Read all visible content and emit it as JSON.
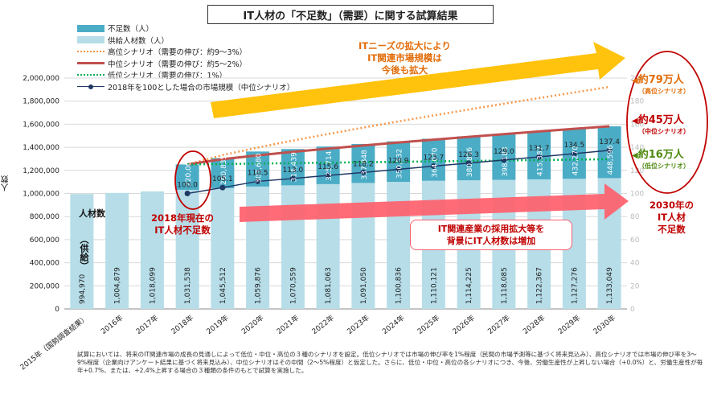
{
  "title": "IT人材の「不足数」（需要）に関する試算結果",
  "ylabel": "人数",
  "legend": [
    {
      "key": "shortage",
      "label": "不足数（人）",
      "kind": "bar",
      "color": "#4bacc6"
    },
    {
      "key": "supply",
      "label": "供給人材数（人）",
      "kind": "bar",
      "color": "#b6dde8"
    },
    {
      "key": "high",
      "label": "高位シナリオ（需要の伸び：約9～3%）",
      "kind": "dotted",
      "color": "#f79646"
    },
    {
      "key": "mid",
      "label": "中位シナリオ（需要の伸び：約5～2%）",
      "kind": "solid",
      "color": "#c0504d"
    },
    {
      "key": "low",
      "label": "低位シナリオ（需要の伸び：1%）",
      "kind": "dotted",
      "color": "#00b050"
    },
    {
      "key": "index",
      "label": "2018年を100とした場合の市場規模（中位シナリオ）",
      "kind": "marker",
      "color": "#1f3864"
    }
  ],
  "colors": {
    "shortage": "#4bacc6",
    "supply": "#b6dde8",
    "high": "#f79646",
    "mid": "#c0504d",
    "low": "#00b050",
    "index": "#1f3864",
    "arrow_orange": "#ffc000",
    "arrow_pink": "#ff5f6d"
  },
  "chart_data": {
    "type": "bar",
    "categories": [
      "2015年（国勢調査結果）",
      "2016年",
      "2017年",
      "2018年",
      "2019年",
      "2020年",
      "2021年",
      "2022年",
      "2023年",
      "2024年",
      "2025年",
      "2026年",
      "2027年",
      "2028年",
      "2029年",
      "2030年"
    ],
    "ylim": [
      0,
      2000000
    ],
    "yticks": [
      "0",
      "200,000",
      "400,000",
      "600,000",
      "800,000",
      "1,000,000",
      "1,200,000",
      "1,400,000",
      "1,600,000",
      "1,800,000",
      "2,000,000"
    ],
    "secondary_yticks": [
      "0",
      "20",
      "40",
      "60",
      "80",
      "100",
      "120",
      "140",
      "160",
      "180",
      "200"
    ],
    "series": [
      {
        "name": "供給人材数（人）",
        "values": [
          994970,
          1004879,
          1018099,
          1031538,
          1045512,
          1059876,
          1070559,
          1081063,
          1091050,
          1100836,
          1110121,
          1114225,
          1118085,
          1122367,
          1127276,
          1133049
        ],
        "labels": [
          "994,970",
          "1,004,879",
          "1,018,099",
          "1,031,538",
          "1,045,512",
          "1,059,876",
          "1,070,559",
          "1,081,063",
          "1,091,050",
          "1,100,836",
          "1,110,121",
          "1,114,225",
          "1,118,085",
          "1,122,367",
          "1,127,276",
          "1,133,049"
        ]
      },
      {
        "name": "不足数（人）",
        "values": [
          null,
          null,
          null,
          220000,
          260835,
          303680,
          314439,
          325714,
          337848,
          350532,
          364070,
          380856,
          398183,
          415387,
          432270,
          448596
        ],
        "labels": [
          "",
          "",
          "",
          "220,000",
          "260,835",
          "303,680",
          "314,439",
          "325,714",
          "337,848",
          "350,532",
          "364,070",
          "380,856",
          "398,183",
          "415,387",
          "432,270",
          "448,596"
        ]
      }
    ],
    "scenarios": {
      "high_end": 1923000,
      "mid_end": 1582000,
      "low_end": 1297000
    },
    "index_series": {
      "name": "2018年を100とした場合の市場規模（中位シナリオ）",
      "values": [
        null,
        null,
        null,
        100.0,
        105.1,
        110.5,
        113.0,
        115.6,
        118.2,
        120.9,
        123.7,
        126.3,
        129.0,
        131.7,
        134.5,
        137.4
      ],
      "labels": [
        "",
        "",
        "",
        "100.0",
        "105.1",
        "110.5",
        "113.0",
        "115.6",
        "118.2",
        "120.9",
        "123.7",
        "126.3",
        "129.0",
        "131.7",
        "134.5",
        "137.4"
      ]
    }
  },
  "annotations": {
    "supply_label_line1": "人材数",
    "supply_label_line2": "（供給）",
    "shortage_2018_line1": "2018年現在の",
    "shortage_2018_line2": "IT人材不足数",
    "it_needs_line1": "ITニーズの拡大により",
    "it_needs_line2": "IT関連市場規模は",
    "it_needs_line3": "今後も拡大",
    "hiring_line1": "IT関連産業の採用拡大等を",
    "hiring_line2": "背景にIT人材数は増加",
    "high_value": "約79万人",
    "high_sub": "（高位シナリオ）",
    "mid_value": "約45万人",
    "mid_sub": "（中位シナリオ）",
    "low_value": "約16万人",
    "low_sub": "（低位シナリオ）",
    "shortage_2030_line1": "2030年の",
    "shortage_2030_line2": "IT人材",
    "shortage_2030_line3": "不足数"
  },
  "note": "試算においては、将来のIT関連市場の成長の見通しによって低位・中位・高位の３種のシナリオを設定。低位シナリオでは市場の伸び率を1%程度（民間の市場予測等に基づく将来見込み）、高位シナリオでは市場の伸び率を3～9%程度（企業向けアンケート結果に基づく将来見込み）、中位シナリオはその中間（2～5%程度）と仮定した。さらに、低位・中位・高位の各シナリオにつき、今後、労働生産性が上昇しない場合（+0.0%）と、労働生産性が毎年+0.7%、または、+2.4%上昇する場合の３種類の条件のもとで試算を実施した。"
}
